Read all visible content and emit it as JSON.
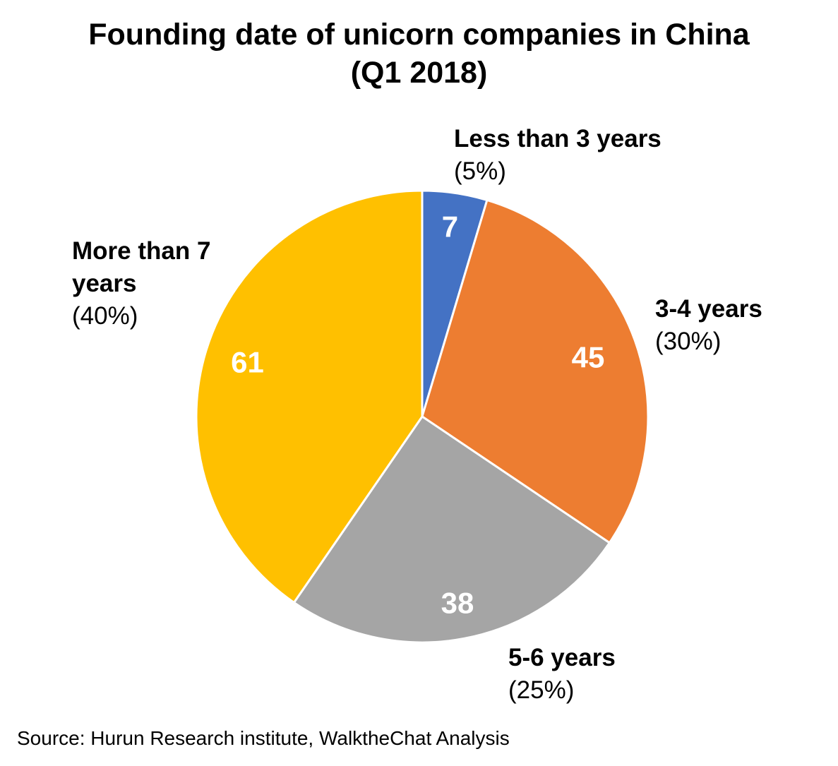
{
  "chart_data": {
    "type": "pie",
    "title": "Founding date of unicorn companies in China",
    "subtitle": "(Q1 2018)",
    "slices": [
      {
        "name": "Less than 3 years",
        "value": 7,
        "value_label": "7",
        "percent_label": "(5%)",
        "color": "#4472C4"
      },
      {
        "name": "3-4 years",
        "value": 45,
        "value_label": "45",
        "percent_label": "(30%)",
        "color": "#ED7D31"
      },
      {
        "name": "5-6 years",
        "value": 38,
        "value_label": "38",
        "percent_label": "(25%)",
        "color": "#A5A5A5"
      },
      {
        "name": "More than 7 years",
        "value": 61,
        "value_label": "61",
        "percent_label": "(40%)",
        "color": "#FFC000"
      }
    ],
    "start_angle": "12 o'clock",
    "direction": "clockwise"
  },
  "footer": {
    "source": "Source: Hurun Research institute, WalktheChat Analysis"
  }
}
